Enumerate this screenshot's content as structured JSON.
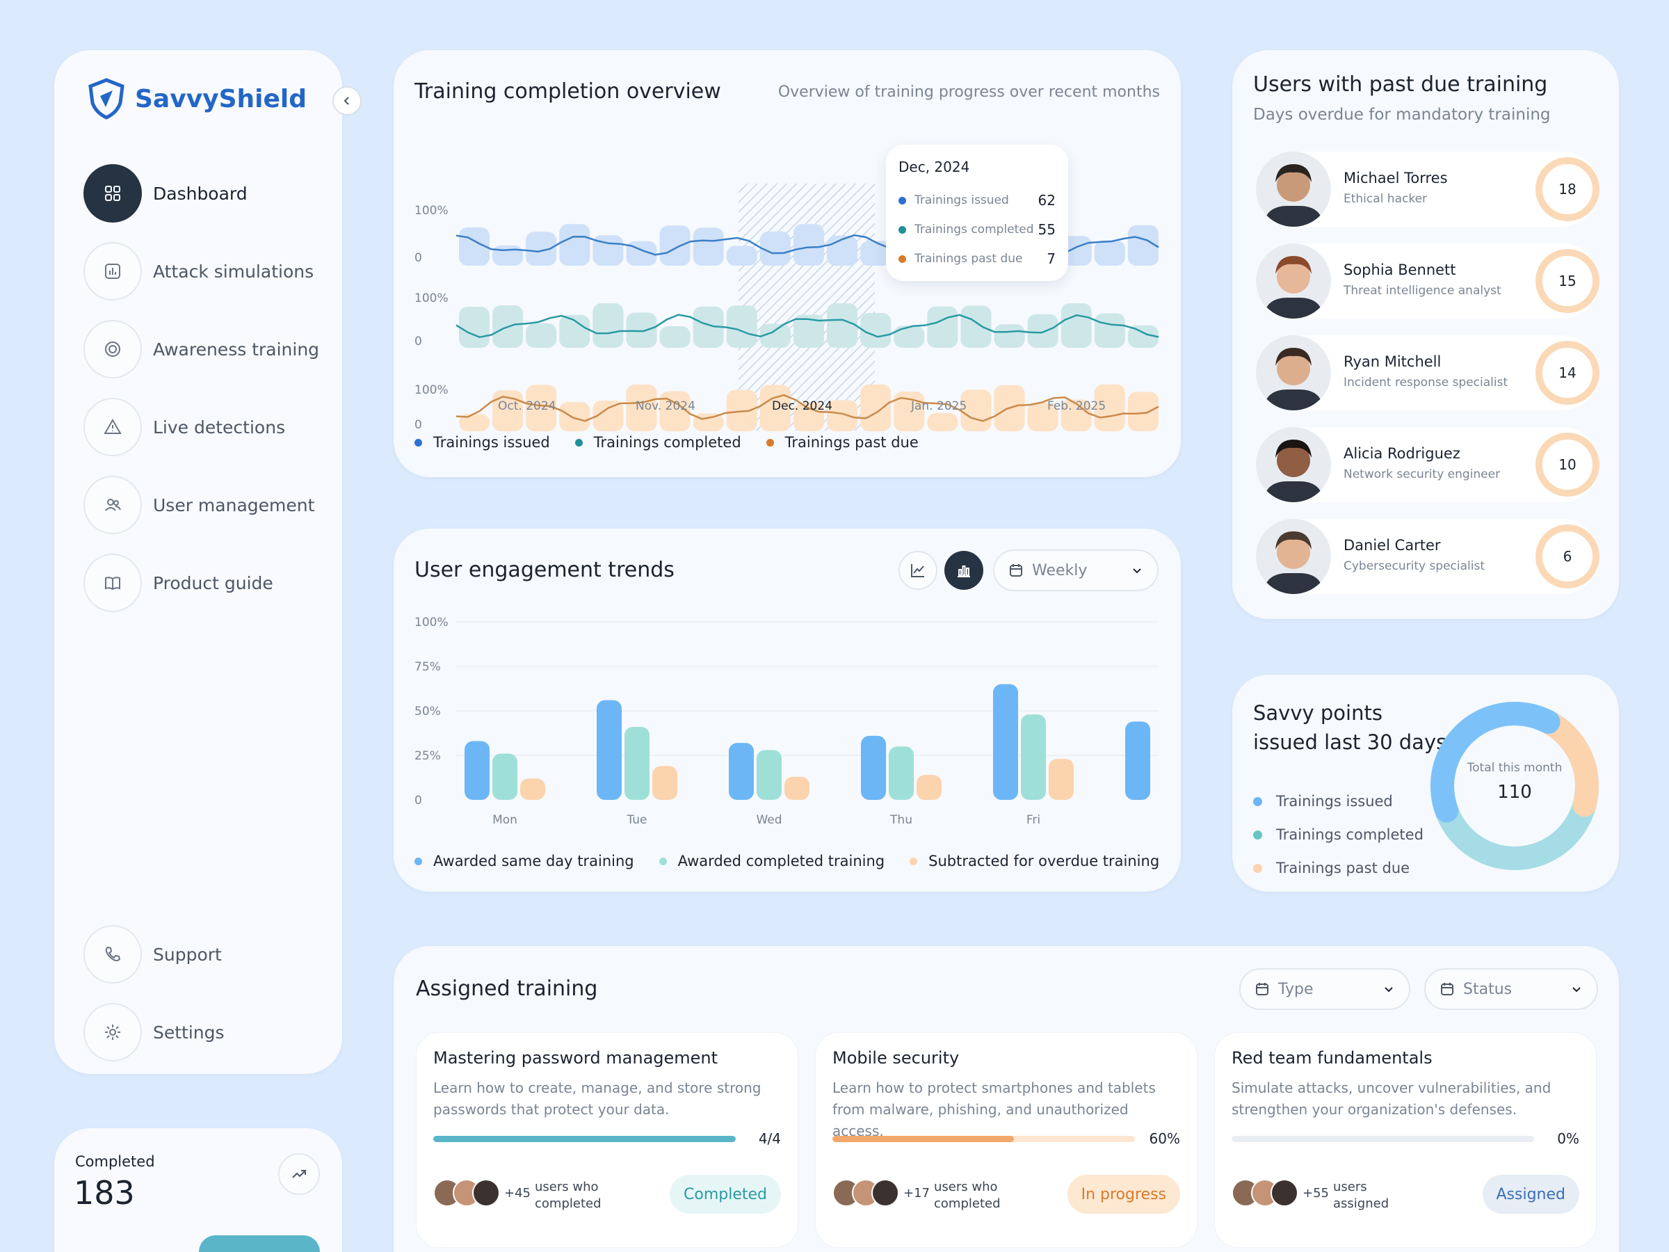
{
  "brand": {
    "name": "SavvyShield"
  },
  "sidebar": {
    "items": [
      {
        "label": "Dashboard",
        "icon": "grid-icon",
        "active": true
      },
      {
        "label": "Attack simulations",
        "icon": "chart-icon"
      },
      {
        "label": "Awareness training",
        "icon": "spinner-icon"
      },
      {
        "label": "Live detections",
        "icon": "warning-icon"
      },
      {
        "label": "User management",
        "icon": "users-icon"
      },
      {
        "label": "Product guide",
        "icon": "book-icon"
      }
    ],
    "bottom": [
      {
        "label": "Support",
        "icon": "phone-icon"
      },
      {
        "label": "Settings",
        "icon": "gear-icon"
      }
    ]
  },
  "completed": {
    "label": "Completed",
    "value": "183"
  },
  "overview": {
    "title": "Training completion overview",
    "subtitle": "Overview of training progress over recent months",
    "y_top": "100%",
    "y_zero": "0",
    "months": [
      "Oct. 2024",
      "Nov. 2024",
      "Dec. 2024",
      "Jan. 2025",
      "Feb. 2025"
    ],
    "tooltip": {
      "title": "Dec, 2024",
      "rows": [
        {
          "label": "Trainings issued",
          "value": "62"
        },
        {
          "label": "Trainings completed",
          "value": "55"
        },
        {
          "label": "Trainings past due",
          "value": "7"
        }
      ]
    },
    "legend": [
      "Trainings issued",
      "Trainings completed",
      "Trainings past due"
    ]
  },
  "engagement": {
    "title": "User engagement trends",
    "period": "Weekly",
    "y_ticks": [
      "100%",
      "75%",
      "50%",
      "25%",
      "0"
    ],
    "days": [
      "Mon",
      "Tue",
      "Wed",
      "Thu",
      "Fri"
    ],
    "legend": [
      "Awarded same day training",
      "Awarded completed training",
      "Subtracted for overdue training"
    ]
  },
  "chart_data": {
    "type": "bar",
    "categories": [
      "Mon",
      "Tue",
      "Wed",
      "Thu",
      "Fri",
      ""
    ],
    "series": [
      {
        "name": "Awarded same day training",
        "values": [
          33,
          56,
          32,
          36,
          65,
          44
        ]
      },
      {
        "name": "Awarded completed training",
        "values": [
          26,
          41,
          28,
          30,
          48,
          null
        ]
      },
      {
        "name": "Subtracted for overdue training",
        "values": [
          12,
          19,
          13,
          14,
          23,
          null
        ]
      }
    ],
    "ylim": [
      0,
      100
    ],
    "colors": [
      "#6cb6f6",
      "#9ee0d7",
      "#fbd3ad"
    ]
  },
  "pastdue": {
    "title": "Users with past due training",
    "subtitle": "Days overdue for mandatory training",
    "users": [
      {
        "name": "Michael Torres",
        "role": "Ethical hacker",
        "days": "18"
      },
      {
        "name": "Sophia Bennett",
        "role": "Threat intelligence analyst",
        "days": "15"
      },
      {
        "name": "Ryan Mitchell",
        "role": "Incident response specialist",
        "days": "14"
      },
      {
        "name": "Alicia Rodriguez",
        "role": "Network security engineer",
        "days": "10"
      },
      {
        "name": "Daniel Carter",
        "role": "Cybersecurity specialist",
        "days": "6"
      }
    ]
  },
  "savvy": {
    "title_1": "Savvy points",
    "title_2": "issued last 30 days",
    "total_label": "Total this month",
    "total": "110",
    "legend": [
      "Trainings issued",
      "Trainings completed",
      "Trainings past due"
    ]
  },
  "assigned": {
    "title": "Assigned training",
    "filters": [
      "Type",
      "Status"
    ],
    "cards": [
      {
        "title": "Mastering password management",
        "desc": "Learn how to create, manage, and store strong passwords that protect your data.",
        "progress_label": "4/4",
        "progress": 1.0,
        "count": "+45",
        "users_text_1": "users who",
        "users_text_2": "completed",
        "status": "Completed"
      },
      {
        "title": "Mobile security",
        "desc": "Learn how to protect smartphones and tablets from malware, phishing, and unauthorized access.",
        "progress_label": "60%",
        "progress": 0.6,
        "count": "+17",
        "users_text_1": "users who",
        "users_text_2": "completed",
        "status": "In progress"
      },
      {
        "title": "Red team fundamentals",
        "desc": "Simulate attacks, uncover vulnerabilities, and strengthen your organization's defenses.",
        "progress_label": "0%",
        "progress": 0.0,
        "count": "+55",
        "users_text_1": "users",
        "users_text_2": "assigned",
        "status": "Assigned"
      }
    ]
  }
}
